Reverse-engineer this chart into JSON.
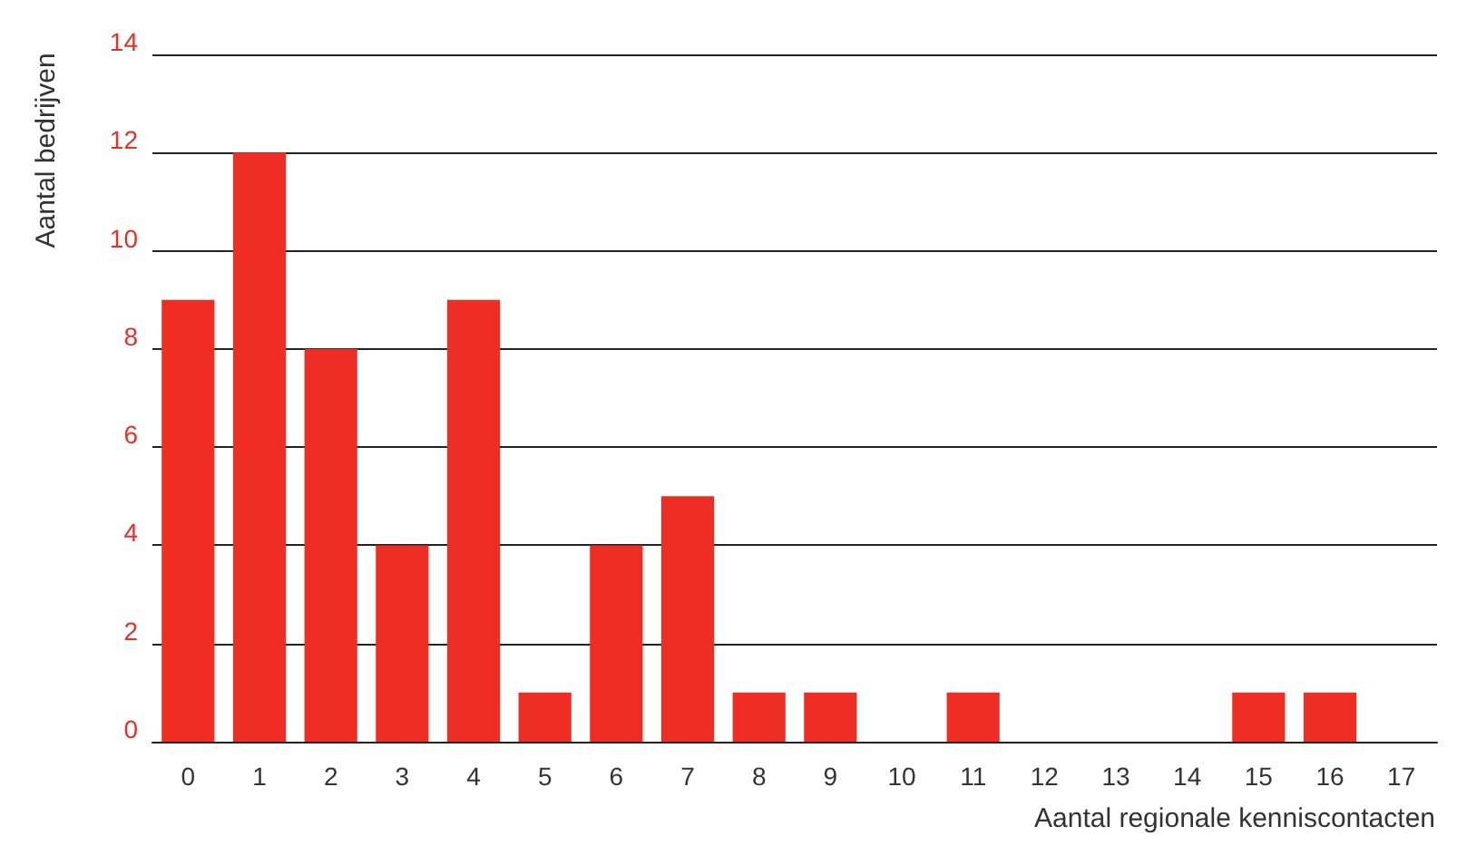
{
  "chart_data": {
    "type": "bar",
    "xlabel": "Aantal regionale kenniscontacten",
    "ylabel": "Aantal bedrijven",
    "categories": [
      "0",
      "1",
      "2",
      "3",
      "4",
      "5",
      "6",
      "7",
      "8",
      "9",
      "10",
      "11",
      "12",
      "13",
      "14",
      "15",
      "16",
      "17"
    ],
    "values": [
      9,
      12,
      8,
      4,
      9,
      1,
      4,
      5,
      1,
      1,
      0,
      1,
      0,
      0,
      0,
      1,
      1,
      0
    ],
    "color": "#ee2e24",
    "ylim": [
      0,
      14
    ],
    "yticks": [
      0,
      2,
      4,
      6,
      8,
      10,
      12,
      14
    ],
    "grid": "y"
  }
}
